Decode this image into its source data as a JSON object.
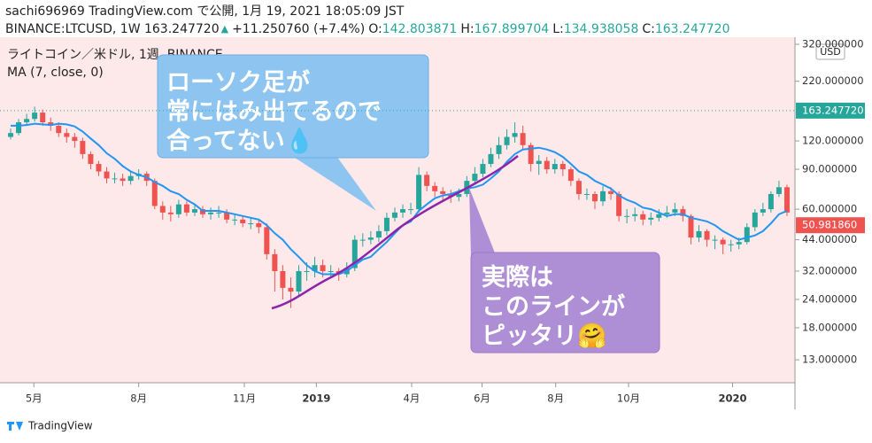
{
  "header": {
    "line1": "sachi696969 TradingView.com で公開, 1月 19, 2021 18:05:09 JST",
    "symbol": "BINANCE:LTCUSD, 1W 163.247720",
    "arrow": "▲",
    "change": "+11.250760 (+7.4%)",
    "ohlc": [
      {
        "label": "O:",
        "value": "142.803871"
      },
      {
        "label": "H:",
        "value": "167.899704"
      },
      {
        "label": "L:",
        "value": "134.938058"
      },
      {
        "label": "C:",
        "value": "163.247720"
      }
    ]
  },
  "chart_data": {
    "type": "candlestick",
    "title": "ライトコイン／米ドル, 1週, BINANCE",
    "up_color": "#26a69a",
    "down_color": "#ef5350",
    "log_scale": true,
    "currency": "USD",
    "ylim": [
      10.3,
      344
    ],
    "yticks": [
      {
        "value": 13,
        "label": "13.000000"
      },
      {
        "value": 18,
        "label": "18.000000"
      },
      {
        "value": 24,
        "label": "24.000000"
      },
      {
        "value": 32,
        "label": "32.000000"
      },
      {
        "value": 44,
        "label": "44.000000"
      },
      {
        "value": 60,
        "label": "60.000000"
      },
      {
        "value": 90,
        "label": "90.000000"
      },
      {
        "value": 120,
        "label": "120.000000"
      },
      {
        "value": 220,
        "label": "220.000000"
      },
      {
        "value": 320,
        "label": "320.000000"
      }
    ],
    "xlim": [
      -1.33,
      98
    ],
    "xticks": [
      {
        "value": 2.9,
        "label": "5月"
      },
      {
        "value": 16.0,
        "label": "8月"
      },
      {
        "value": 29.2,
        "label": "11月"
      },
      {
        "value": 38.2,
        "label": "2019"
      },
      {
        "value": 50.1,
        "label": "4月"
      },
      {
        "value": 58.9,
        "label": "6月"
      },
      {
        "value": 68.1,
        "label": "8月"
      },
      {
        "value": 77.2,
        "label": "10月"
      },
      {
        "value": 90.2,
        "label": "2020"
      }
    ],
    "open": [
      125,
      130,
      145,
      150,
      160,
      145,
      140,
      130,
      125,
      120,
      105,
      95,
      88,
      82,
      82,
      80,
      84,
      86,
      80,
      62,
      58,
      57,
      63,
      58,
      60,
      57,
      58,
      58,
      54,
      54,
      52,
      52,
      50,
      38,
      32,
      27,
      26,
      32,
      32,
      34,
      32,
      32,
      31,
      33,
      44,
      44,
      45,
      48,
      55,
      58,
      60,
      60,
      85,
      76,
      72,
      70,
      68,
      70,
      80,
      86,
      95,
      105,
      115,
      125,
      130,
      115,
      95,
      98,
      90,
      95,
      90,
      80,
      70,
      70,
      65,
      72,
      70,
      56,
      56,
      57,
      54,
      55,
      57,
      58,
      60,
      56,
      45,
      48,
      44,
      44,
      42,
      42,
      43,
      50,
      58,
      60,
      70,
      75
    ],
    "high": [
      136,
      150,
      158,
      170,
      165,
      152,
      145,
      136,
      130,
      124,
      108,
      98,
      92,
      87,
      86,
      88,
      90,
      88,
      82,
      65,
      62,
      66,
      65,
      63,
      62,
      61,
      62,
      60,
      57,
      56,
      55,
      54,
      52,
      40,
      34,
      30,
      34,
      35,
      37,
      36,
      34,
      33,
      35,
      46,
      47,
      48,
      51,
      58,
      61,
      63,
      64,
      92,
      88,
      79,
      75,
      73,
      74,
      84,
      92,
      100,
      112,
      125,
      135,
      145,
      140,
      118,
      104,
      102,
      100,
      98,
      92,
      82,
      74,
      72,
      76,
      75,
      72,
      60,
      61,
      59,
      58,
      60,
      62,
      64,
      62,
      57,
      51,
      49,
      46,
      45,
      44,
      45,
      52,
      60,
      64,
      72,
      80,
      77
    ],
    "low": [
      122,
      127,
      140,
      146,
      140,
      133,
      125,
      118,
      112,
      100,
      90,
      84,
      78,
      78,
      76,
      77,
      81,
      76,
      60,
      54,
      53,
      55,
      56,
      56,
      55,
      54,
      55,
      52,
      51,
      50,
      49,
      47,
      36,
      26,
      24,
      22,
      25,
      29,
      30,
      30,
      30,
      29,
      30,
      32,
      41,
      42,
      43,
      46,
      53,
      55,
      57,
      58,
      72,
      68,
      66,
      64,
      65,
      68,
      77,
      83,
      92,
      100,
      110,
      118,
      110,
      88,
      85,
      86,
      86,
      84,
      76,
      66,
      66,
      60,
      62,
      66,
      53,
      52,
      53,
      51,
      51,
      53,
      55,
      56,
      53,
      42,
      43,
      41,
      40,
      38,
      39,
      40,
      42,
      48,
      56,
      58,
      68,
      56
    ],
    "close": [
      130,
      145,
      150,
      160,
      145,
      140,
      130,
      125,
      120,
      105,
      95,
      88,
      82,
      82,
      80,
      84,
      86,
      80,
      62,
      58,
      57,
      63,
      58,
      60,
      57,
      58,
      58,
      54,
      54,
      52,
      52,
      50,
      38,
      32,
      27,
      26,
      32,
      32,
      34,
      32,
      32,
      31,
      33,
      44,
      44,
      45,
      48,
      55,
      58,
      60,
      60,
      85,
      76,
      72,
      70,
      68,
      70,
      80,
      86,
      95,
      105,
      115,
      125,
      130,
      115,
      95,
      98,
      90,
      95,
      90,
      80,
      70,
      70,
      65,
      72,
      70,
      56,
      56,
      57,
      54,
      55,
      57,
      58,
      60,
      56,
      45,
      48,
      44,
      44,
      42,
      42,
      43,
      50,
      58,
      60,
      70,
      75,
      58
    ],
    "series": [
      {
        "name": "MA (7, close, 0)",
        "color": "#2196f3",
        "values": [
          140,
          140,
          141,
          143,
          142,
          141,
          143,
          142,
          139,
          132,
          123,
          115,
          106,
          100,
          93,
          88,
          85,
          83,
          79,
          76,
          72,
          70,
          66,
          63,
          59,
          59,
          59,
          58,
          57,
          56,
          55,
          54,
          51,
          47,
          44,
          40,
          37,
          34,
          32,
          31,
          31,
          31,
          32,
          34,
          36,
          37,
          40,
          43,
          47,
          51,
          53,
          59,
          63,
          67,
          69,
          70,
          72,
          74,
          75,
          77,
          82,
          88,
          97,
          105,
          110,
          111,
          112,
          110,
          107,
          102,
          95,
          88,
          85,
          80,
          77,
          74,
          69,
          66,
          64,
          61,
          60,
          58,
          56,
          57,
          57,
          55,
          54,
          53,
          51,
          48,
          46,
          44,
          45,
          46,
          48,
          52,
          57,
          59
        ]
      }
    ],
    "price_labels": [
      {
        "value": 163.24772,
        "label": "163.247720",
        "color": "#26a69a"
      },
      {
        "value": 50.98186,
        "label": "50.981860",
        "color": "#ef5350"
      }
    ],
    "annotations": [
      {
        "lines": [
          "ローソク足が",
          "常にはみ出てるので",
          "合ってない💧"
        ]
      },
      {
        "lines": [
          "実際は",
          "このラインが",
          "ピッタリ🤗"
        ]
      }
    ]
  },
  "footer": {
    "brand": "TradingView"
  }
}
